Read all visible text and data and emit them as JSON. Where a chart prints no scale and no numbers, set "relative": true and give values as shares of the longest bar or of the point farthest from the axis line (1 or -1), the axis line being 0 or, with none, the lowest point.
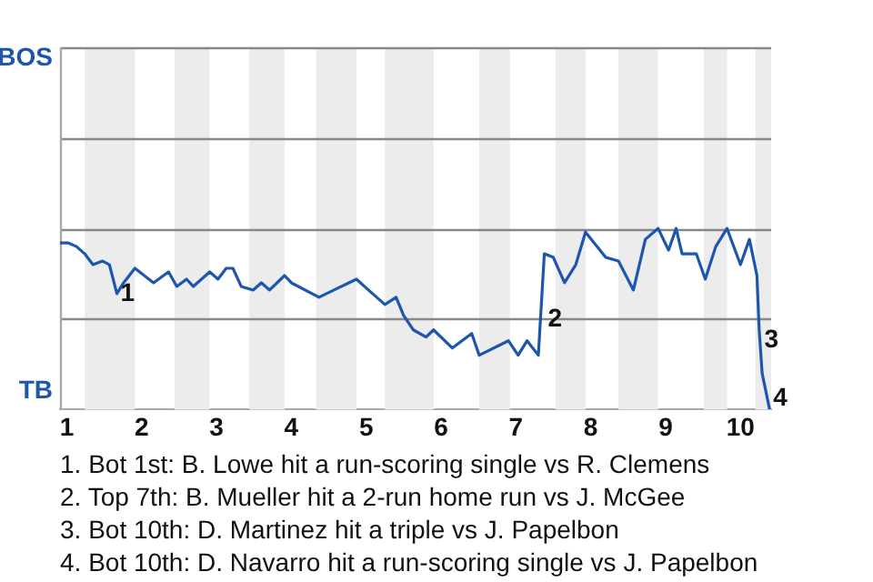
{
  "chart_data": {
    "type": "line",
    "relative": true,
    "x": [
      0.91,
      1.02,
      1.13,
      1.24,
      1.35,
      1.48,
      1.57,
      1.67,
      1.76,
      1.91,
      2.16,
      2.36,
      2.47,
      2.6,
      2.69,
      2.91,
      3.02,
      3.13,
      3.22,
      3.33,
      3.49,
      3.6,
      3.71,
      3.91,
      4,
      4.37,
      4.57,
      4.87,
      5.03,
      5.25,
      5.4,
      5.5,
      5.63,
      5.8,
      5.9,
      6.15,
      6.41,
      6.51,
      6.9,
      7.03,
      7.15,
      7.3,
      7.38,
      7.5,
      7.65,
      7.8,
      7.93,
      8.2,
      8.37,
      8.57,
      8.73,
      8.9,
      9.04,
      9.14,
      9.22,
      9.41,
      9.53,
      9.67,
      9.82,
      10,
      10.12,
      10.22,
      10.25,
      10.29,
      10.39
    ],
    "series": [
      {
        "color": "#1f56ad",
        "values": [
          0.92,
          0.92,
          0.9,
          0.86,
          0.8,
          0.82,
          0.8,
          0.64,
          0.7,
          0.78,
          0.7,
          0.76,
          0.68,
          0.72,
          0.68,
          0.76,
          0.72,
          0.78,
          0.78,
          0.68,
          0.66,
          0.7,
          0.66,
          0.74,
          0.7,
          0.62,
          0.66,
          0.72,
          0.66,
          0.58,
          0.62,
          0.52,
          0.44,
          0.4,
          0.44,
          0.34,
          0.42,
          0.3,
          0.38,
          0.3,
          0.38,
          0.3,
          0.86,
          0.84,
          0.7,
          0.8,
          0.98,
          0.84,
          0.82,
          0.66,
          0.94,
          1,
          0.88,
          1,
          0.86,
          0.86,
          0.72,
          0.9,
          1,
          0.8,
          0.94,
          0.74,
          0.44,
          0.2,
          0
        ]
      }
    ],
    "xlim": [
      0.91,
      10.41
    ],
    "xticks": [
      1,
      2,
      3,
      4,
      5,
      6,
      7,
      8,
      9,
      10
    ],
    "legend": false,
    "marker": "none",
    "line_style": "solid",
    "ref_lines": [
      {
        "axis": "y",
        "value": 0.5,
        "color": "#888888"
      },
      {
        "axis": "y",
        "value": 1,
        "color": "#888888"
      },
      {
        "axis": "y",
        "value": 1.5,
        "color": "#888888"
      },
      {
        "axis": "y",
        "value": 2,
        "color": "#888888"
      }
    ],
    "bands": [
      {
        "axis": "x",
        "from": 1.24,
        "to": 1.91,
        "color": "#ececec"
      },
      {
        "axis": "x",
        "from": 2.44,
        "to": 2.91,
        "color": "#ececec"
      },
      {
        "axis": "x",
        "from": 3.44,
        "to": 3.91,
        "color": "#ececec"
      },
      {
        "axis": "x",
        "from": 4.33,
        "to": 4.87,
        "color": "#ececec"
      },
      {
        "axis": "x",
        "from": 5.25,
        "to": 5.9,
        "color": "#ececec"
      },
      {
        "axis": "x",
        "from": 6.51,
        "to": 6.92,
        "color": "#ececec"
      },
      {
        "axis": "x",
        "from": 7.53,
        "to": 7.93,
        "color": "#ececec"
      },
      {
        "axis": "x",
        "from": 8.37,
        "to": 8.9,
        "color": "#ececec"
      },
      {
        "axis": "x",
        "from": 9.51,
        "to": 9.82,
        "color": "#ececec"
      },
      {
        "axis": "x",
        "from": 10.2,
        "to": 10.41,
        "color": "#ececec"
      }
    ],
    "annotations": [
      "BOS",
      "TB",
      {
        "text": "1",
        "x": 1.67,
        "y": 0.64
      },
      {
        "text": "2",
        "x": 7.38,
        "y": 0.5
      },
      {
        "text": "3",
        "x": 10.27,
        "y": 0.38
      },
      {
        "text": "4",
        "x": 10.39,
        "y": 0
      },
      "1. Bot 1st: B. Lowe hit a run-scoring single vs R. Clemens",
      "2. Top 7th: B. Mueller hit a 2-run home run vs J. McGee",
      "3. Bot 10th: D. Martinez hit a triple vs J. Papelbon",
      "4. Bot 10th: D. Navarro hit a run-scoring single vs J. Papelbon"
    ]
  }
}
